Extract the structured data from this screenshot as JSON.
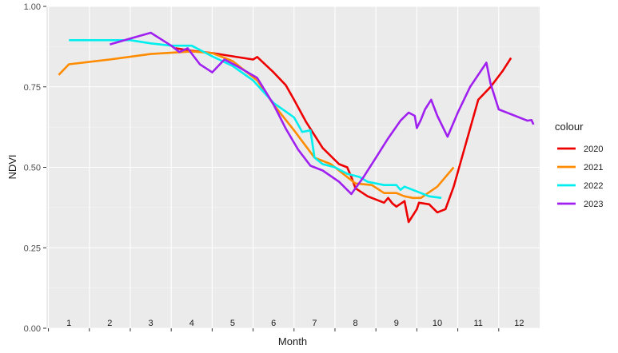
{
  "chart_data": {
    "type": "line",
    "title": "",
    "xlabel": "Month",
    "ylabel": "NDVI",
    "xlim": [
      0.45,
      12.5
    ],
    "ylim": [
      0,
      1
    ],
    "yticks": [
      0.0,
      0.25,
      0.5,
      0.75,
      1.0
    ],
    "ytick_labels": [
      "0.00",
      "0.25",
      "0.50",
      "0.75",
      "1.00"
    ],
    "month_labels": [
      "1",
      "2",
      "3",
      "4",
      "5",
      "6",
      "7",
      "8",
      "9",
      "10",
      "11",
      "12"
    ],
    "grid": true,
    "legend_title": "colour",
    "legend_position": "right",
    "series": [
      {
        "name": "2020",
        "color": "#ee0000",
        "points": [
          [
            3.6,
            0.87
          ],
          [
            4.0,
            0.862
          ],
          [
            4.5,
            0.855
          ],
          [
            5.0,
            0.845
          ],
          [
            5.5,
            0.835
          ],
          [
            5.6,
            0.843
          ],
          [
            6.0,
            0.795
          ],
          [
            6.3,
            0.755
          ],
          [
            6.5,
            0.71
          ],
          [
            6.8,
            0.64
          ],
          [
            7.2,
            0.56
          ],
          [
            7.6,
            0.51
          ],
          [
            7.8,
            0.5
          ],
          [
            7.9,
            0.47
          ],
          [
            8.0,
            0.435
          ],
          [
            8.3,
            0.41
          ],
          [
            8.7,
            0.39
          ],
          [
            8.8,
            0.405
          ],
          [
            8.9,
            0.388
          ],
          [
            9.0,
            0.378
          ],
          [
            9.2,
            0.395
          ],
          [
            9.3,
            0.33
          ],
          [
            9.5,
            0.37
          ],
          [
            9.55,
            0.39
          ],
          [
            9.8,
            0.385
          ],
          [
            10.0,
            0.36
          ],
          [
            10.2,
            0.37
          ],
          [
            10.4,
            0.44
          ],
          [
            11.0,
            0.71
          ],
          [
            11.3,
            0.75
          ],
          [
            11.6,
            0.8
          ],
          [
            11.8,
            0.84
          ]
        ]
      },
      {
        "name": "2021",
        "color": "#ff8c00",
        "points": [
          [
            0.75,
            0.787
          ],
          [
            1.0,
            0.82
          ],
          [
            2.0,
            0.835
          ],
          [
            3.0,
            0.852
          ],
          [
            4.0,
            0.86
          ],
          [
            4.5,
            0.855
          ],
          [
            5.0,
            0.83
          ],
          [
            5.6,
            0.77
          ],
          [
            6.0,
            0.695
          ],
          [
            6.5,
            0.615
          ],
          [
            7.0,
            0.53
          ],
          [
            7.4,
            0.51
          ],
          [
            7.8,
            0.47
          ],
          [
            8.0,
            0.45
          ],
          [
            8.4,
            0.445
          ],
          [
            8.7,
            0.42
          ],
          [
            9.0,
            0.42
          ],
          [
            9.2,
            0.41
          ],
          [
            9.4,
            0.405
          ],
          [
            9.6,
            0.405
          ],
          [
            10.0,
            0.44
          ],
          [
            10.4,
            0.5
          ]
        ]
      },
      {
        "name": "2022",
        "color": "#00eeee",
        "points": [
          [
            1.0,
            0.895
          ],
          [
            1.5,
            0.895
          ],
          [
            2.0,
            0.895
          ],
          [
            2.5,
            0.895
          ],
          [
            3.0,
            0.885
          ],
          [
            3.5,
            0.878
          ],
          [
            4.0,
            0.878
          ],
          [
            4.5,
            0.845
          ],
          [
            5.0,
            0.815
          ],
          [
            5.5,
            0.77
          ],
          [
            6.0,
            0.7
          ],
          [
            6.5,
            0.655
          ],
          [
            6.7,
            0.61
          ],
          [
            6.9,
            0.615
          ],
          [
            7.0,
            0.53
          ],
          [
            7.2,
            0.51
          ],
          [
            7.5,
            0.5
          ],
          [
            7.8,
            0.48
          ],
          [
            8.1,
            0.47
          ],
          [
            8.3,
            0.455
          ],
          [
            8.7,
            0.445
          ],
          [
            9.0,
            0.445
          ],
          [
            9.1,
            0.43
          ],
          [
            9.2,
            0.44
          ],
          [
            9.5,
            0.425
          ],
          [
            9.8,
            0.41
          ],
          [
            10.1,
            0.405
          ]
        ]
      },
      {
        "name": "2023",
        "color": "#a020f0",
        "points": [
          [
            2.0,
            0.882
          ],
          [
            2.5,
            0.9
          ],
          [
            3.0,
            0.918
          ],
          [
            3.5,
            0.878
          ],
          [
            3.7,
            0.858
          ],
          [
            3.9,
            0.87
          ],
          [
            4.2,
            0.82
          ],
          [
            4.5,
            0.795
          ],
          [
            4.8,
            0.835
          ],
          [
            5.1,
            0.815
          ],
          [
            5.6,
            0.778
          ],
          [
            6.0,
            0.695
          ],
          [
            6.3,
            0.62
          ],
          [
            6.6,
            0.555
          ],
          [
            6.9,
            0.505
          ],
          [
            7.2,
            0.49
          ],
          [
            7.6,
            0.455
          ],
          [
            7.9,
            0.417
          ],
          [
            8.2,
            0.47
          ],
          [
            8.5,
            0.53
          ],
          [
            8.8,
            0.59
          ],
          [
            9.1,
            0.645
          ],
          [
            9.3,
            0.67
          ],
          [
            9.45,
            0.66
          ],
          [
            9.5,
            0.622
          ],
          [
            9.6,
            0.648
          ],
          [
            9.7,
            0.68
          ],
          [
            9.85,
            0.71
          ],
          [
            10.0,
            0.66
          ],
          [
            10.25,
            0.595
          ],
          [
            10.5,
            0.67
          ],
          [
            10.8,
            0.75
          ],
          [
            11.2,
            0.825
          ],
          [
            11.3,
            0.76
          ],
          [
            11.5,
            0.68
          ],
          [
            11.8,
            0.665
          ],
          [
            12.2,
            0.645
          ],
          [
            12.3,
            0.647
          ],
          [
            12.35,
            0.633
          ]
        ]
      }
    ]
  }
}
